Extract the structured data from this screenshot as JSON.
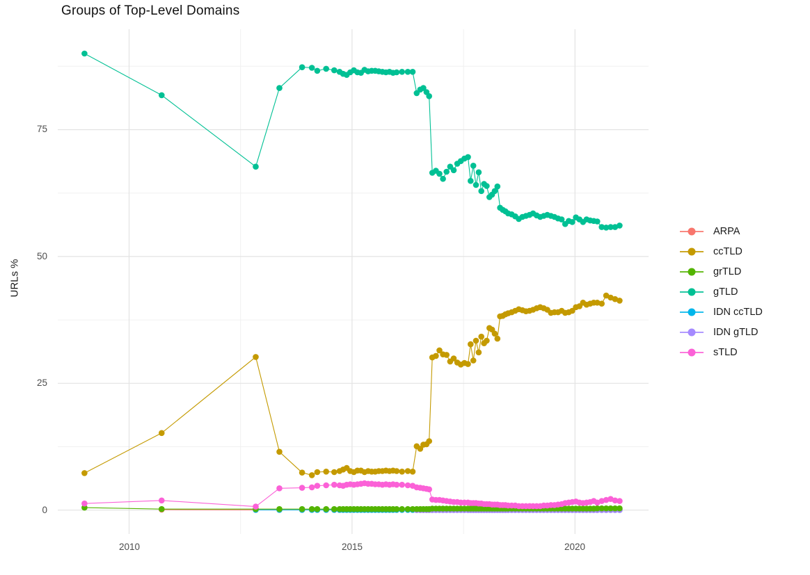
{
  "page": {
    "background": "#ffffff"
  },
  "chart_data": {
    "type": "line",
    "title": "Groups of Top-Level Domains",
    "xlabel": "",
    "ylabel": "URLs %",
    "legend_position": "right",
    "grid": true,
    "x_range": [
      2008.4,
      2021.65
    ],
    "y_range": [
      -4.7,
      94.8
    ],
    "x_ticks": [
      2010,
      2015,
      2020
    ],
    "x_tick_labels": [
      "2010",
      "2015",
      "2020"
    ],
    "x_minor_ticks": [
      2012.5,
      2017.5
    ],
    "y_ticks": [
      0,
      25,
      50,
      75
    ],
    "y_tick_labels": [
      "0",
      "25",
      "50",
      "75"
    ],
    "y_minor_ticks": [
      12.5,
      37.5,
      62.5,
      87.5
    ],
    "colors": {
      "ARPA": "#F8766D",
      "ccTLD": "#C49A00",
      "grTLD": "#53B400",
      "gTLD": "#00C094",
      "IDN ccTLD": "#00B6EB",
      "IDN gTLD": "#A58AFF",
      "sTLD": "#FB61D7"
    },
    "x": [
      2009.0,
      2010.73,
      2012.84,
      2013.37,
      2013.88,
      2014.1,
      2014.22,
      2014.42,
      2014.6,
      2014.72,
      2014.8,
      2014.88,
      2014.96,
      2015.04,
      2015.12,
      2015.2,
      2015.28,
      2015.36,
      2015.44,
      2015.52,
      2015.6,
      2015.68,
      2015.76,
      2015.84,
      2015.92,
      2016.0,
      2016.12,
      2016.25,
      2016.36,
      2016.45,
      2016.53,
      2016.6,
      2016.67,
      2016.73,
      2016.8,
      2016.88,
      2016.96,
      2017.04,
      2017.12,
      2017.2,
      2017.28,
      2017.36,
      2017.44,
      2017.52,
      2017.6,
      2017.66,
      2017.72,
      2017.78,
      2017.84,
      2017.9,
      2017.96,
      2018.02,
      2018.08,
      2018.14,
      2018.2,
      2018.26,
      2018.32,
      2018.38,
      2018.44,
      2018.5,
      2018.58,
      2018.66,
      2018.74,
      2018.82,
      2018.9,
      2018.98,
      2019.06,
      2019.14,
      2019.22,
      2019.3,
      2019.38,
      2019.46,
      2019.54,
      2019.62,
      2019.7,
      2019.78,
      2019.86,
      2019.94,
      2020.02,
      2020.1,
      2020.18,
      2020.26,
      2020.34,
      2020.42,
      2020.5,
      2020.6,
      2020.7,
      2020.8,
      2020.9,
      2021.0
    ],
    "series": [
      {
        "name": "ARPA",
        "color": "#F8766D",
        "values": [
          null,
          0.1,
          0.05,
          0.05,
          0.05,
          0.05,
          0.05,
          0.05,
          0.05,
          0.05,
          0.05,
          0.05,
          0.05,
          0.05,
          0.05,
          0.05,
          0.05,
          0.05,
          0.05,
          0.05,
          0.05,
          0.05,
          0.05,
          0.05,
          0.05,
          0.05,
          0.05,
          0.05,
          0.05,
          0.05,
          0.05,
          0.05,
          0.05,
          0.05,
          0.05,
          0.05,
          0.05,
          0.05,
          0.05,
          0.05,
          0.05,
          0.05,
          0.05,
          0.05,
          0.05,
          0.05,
          0.05,
          0.05,
          0.05,
          0.05,
          0.05,
          0.05,
          0.05,
          0.05,
          0.05,
          0.05,
          0.05,
          0.05,
          0.05,
          0.05,
          0.05,
          0.05,
          0.05,
          0.05,
          0.05,
          0.05,
          0.05,
          0.05,
          0.05,
          0.05,
          0.05,
          0.05,
          0.05,
          0.05,
          0.05,
          0.05,
          0.05,
          0.05,
          0.05,
          0.05,
          0.05,
          0.05,
          0.05,
          0.05,
          0.05,
          0.05,
          0.05,
          0.05,
          0.05,
          0.05
        ]
      },
      {
        "name": "ccTLD",
        "color": "#C49A00",
        "values": [
          7.3,
          15.2,
          30.2,
          11.5,
          7.4,
          6.9,
          7.5,
          7.6,
          7.5,
          7.7,
          8.0,
          8.3,
          7.7,
          7.5,
          7.8,
          7.8,
          7.5,
          7.7,
          7.6,
          7.6,
          7.7,
          7.7,
          7.8,
          7.7,
          7.8,
          7.7,
          7.6,
          7.7,
          7.6,
          12.6,
          12.1,
          12.9,
          13.0,
          13.6,
          30.1,
          30.4,
          31.5,
          30.7,
          30.6,
          29.3,
          29.9,
          29.1,
          28.7,
          29.0,
          28.8,
          32.7,
          29.5,
          33.4,
          31.1,
          34.2,
          32.9,
          33.4,
          35.9,
          35.6,
          34.8,
          33.8,
          38.2,
          38.3,
          38.6,
          38.8,
          39.0,
          39.3,
          39.6,
          39.4,
          39.2,
          39.3,
          39.5,
          39.8,
          40.0,
          39.8,
          39.5,
          38.9,
          39.0,
          39.0,
          39.3,
          38.9,
          39.0,
          39.3,
          40.0,
          40.2,
          40.9,
          40.5,
          40.7,
          40.9,
          40.9,
          40.7,
          42.3,
          41.9,
          41.6,
          41.3
        ]
      },
      {
        "name": "grTLD",
        "color": "#53B400",
        "values": [
          0.5,
          0.2,
          0.2,
          0.2,
          0.2,
          0.2,
          0.2,
          0.2,
          0.2,
          0.2,
          0.2,
          0.2,
          0.2,
          0.2,
          0.2,
          0.2,
          0.2,
          0.2,
          0.2,
          0.2,
          0.2,
          0.2,
          0.2,
          0.2,
          0.2,
          0.2,
          0.2,
          0.2,
          0.2,
          0.2,
          0.2,
          0.2,
          0.2,
          0.2,
          0.3,
          0.3,
          0.3,
          0.3,
          0.3,
          0.3,
          0.3,
          0.3,
          0.3,
          0.3,
          0.3,
          0.3,
          0.3,
          0.3,
          0.3,
          0.3,
          0.3,
          0.3,
          0.3,
          0.3,
          0.3,
          0.3,
          0.3,
          0.3,
          0.3,
          0.3,
          0.3,
          0.3,
          0.3,
          0.3,
          0.3,
          0.3,
          0.3,
          0.3,
          0.3,
          0.3,
          0.3,
          0.3,
          0.3,
          0.3,
          0.3,
          0.3,
          0.3,
          0.3,
          0.3,
          0.3,
          0.3,
          0.3,
          0.3,
          0.3,
          0.35,
          0.35,
          0.35,
          0.35,
          0.35,
          0.35
        ]
      },
      {
        "name": "gTLD",
        "color": "#00C094",
        "values": [
          90,
          81.8,
          67.7,
          83.2,
          87.3,
          87.2,
          86.6,
          87.0,
          86.7,
          86.4,
          86.0,
          85.8,
          86.3,
          86.7,
          86.3,
          86.2,
          86.8,
          86.5,
          86.6,
          86.6,
          86.5,
          86.4,
          86.3,
          86.4,
          86.2,
          86.3,
          86.4,
          86.4,
          86.4,
          82.2,
          82.9,
          83.2,
          82.4,
          81.6,
          66.5,
          66.9,
          66.3,
          65.3,
          66.7,
          67.7,
          67.0,
          68.3,
          68.8,
          69.3,
          69.6,
          64.9,
          67.9,
          64.1,
          66.6,
          62.9,
          64.3,
          63.9,
          61.7,
          62.2,
          62.9,
          63.8,
          59.6,
          59.2,
          58.9,
          58.5,
          58.3,
          57.9,
          57.4,
          57.8,
          58.0,
          58.2,
          58.5,
          58.1,
          57.8,
          58.0,
          58.2,
          58.0,
          57.8,
          57.5,
          57.3,
          56.4,
          57.0,
          56.8,
          57.7,
          57.3,
          56.8,
          57.3,
          57.1,
          57.0,
          56.9,
          55.8,
          55.7,
          55.8,
          55.8,
          56.1
        ]
      },
      {
        "name": "IDN ccTLD",
        "color": "#00B6EB",
        "values": [
          null,
          null,
          0.05,
          0.05,
          0.05,
          0.05,
          0.05,
          0.05,
          0.05,
          0.05,
          0.05,
          0.05,
          0.05,
          0.05,
          0.05,
          0.05,
          0.05,
          0.05,
          0.05,
          0.05,
          0.05,
          0.05,
          0.05,
          0.05,
          0.05,
          0.05,
          0.05,
          0.05,
          0.05,
          0.05,
          0.05,
          0.05,
          0.05,
          0.05,
          0.05,
          0.05,
          0.05,
          0.05,
          0.05,
          0.05,
          0.05,
          0.05,
          0.05,
          0.05,
          0.05,
          0.05,
          0.05,
          0.05,
          0.05,
          0.05,
          0.05,
          0.05,
          0.05,
          0.05,
          0.05,
          0.05,
          0.05,
          0.05,
          0.05,
          0.05,
          0.05,
          0.05,
          0.05,
          0.05,
          0.05,
          0.05,
          0.05,
          0.05,
          0.05,
          0.05,
          0.05,
          0.05,
          0.05,
          0.05,
          0.05,
          0.05,
          0.05,
          0.05,
          0.05,
          0.05,
          0.05,
          0.05,
          0.05,
          0.05,
          0.05,
          0.05,
          0.05,
          0.05,
          0.05,
          0.05
        ]
      },
      {
        "name": "IDN gTLD",
        "color": "#A58AFF",
        "values": [
          null,
          null,
          null,
          null,
          null,
          null,
          null,
          null,
          null,
          null,
          null,
          null,
          null,
          null,
          null,
          null,
          null,
          null,
          null,
          null,
          null,
          null,
          null,
          null,
          null,
          null,
          null,
          null,
          null,
          0.02,
          0.02,
          0.02,
          0.02,
          0.02,
          0.02,
          0.02,
          0.02,
          0.02,
          0.02,
          0.02,
          0.02,
          0.02,
          0.02,
          0.02,
          0.02,
          0.02,
          0.02,
          0.02,
          0.02,
          0.02,
          0.02,
          0.02,
          0.02,
          0.02,
          0.02,
          0.02,
          0.02,
          0.02,
          0.02,
          0.02,
          0.02,
          0.02,
          0.02,
          0.02,
          0.02,
          0.02,
          0.02,
          0.02,
          0.02,
          0.02,
          0.02,
          0.02,
          0.02,
          0.02,
          0.02,
          0.02,
          0.02,
          0.02,
          0.02,
          0.02,
          0.02,
          0.02,
          0.02,
          0.02,
          0.02,
          0.02,
          0.02,
          0.02,
          0.02,
          0.02
        ]
      },
      {
        "name": "sTLD",
        "color": "#FB61D7",
        "values": [
          1.3,
          1.9,
          0.7,
          4.3,
          4.4,
          4.5,
          4.8,
          4.9,
          5.0,
          4.9,
          4.8,
          5.0,
          5.1,
          5.0,
          5.1,
          5.2,
          5.3,
          5.2,
          5.2,
          5.1,
          5.1,
          5.0,
          5.1,
          5.0,
          5.1,
          5.0,
          5.0,
          4.9,
          4.8,
          4.5,
          4.4,
          4.3,
          4.2,
          4.1,
          2.1,
          2.0,
          2.0,
          1.9,
          1.8,
          1.7,
          1.6,
          1.6,
          1.5,
          1.5,
          1.5,
          1.4,
          1.4,
          1.4,
          1.3,
          1.3,
          1.2,
          1.2,
          1.2,
          1.1,
          1.1,
          1.1,
          1.0,
          1.0,
          1.0,
          0.9,
          0.9,
          0.9,
          0.8,
          0.8,
          0.8,
          0.8,
          0.8,
          0.8,
          0.8,
          0.9,
          0.9,
          1.0,
          1.0,
          1.1,
          1.2,
          1.4,
          1.5,
          1.6,
          1.7,
          1.5,
          1.4,
          1.5,
          1.6,
          1.8,
          1.5,
          1.8,
          2.0,
          2.2,
          1.9,
          1.8
        ]
      }
    ],
    "draw_order": [
      "ARPA",
      "IDN ccTLD",
      "IDN gTLD",
      "grTLD",
      "ccTLD",
      "gTLD",
      "sTLD"
    ],
    "style": {
      "major_grid_color": "#E3E3E3",
      "minor_grid_color": "#F0F0F0",
      "point_radius": 4.3,
      "line_width": 1.1
    }
  }
}
